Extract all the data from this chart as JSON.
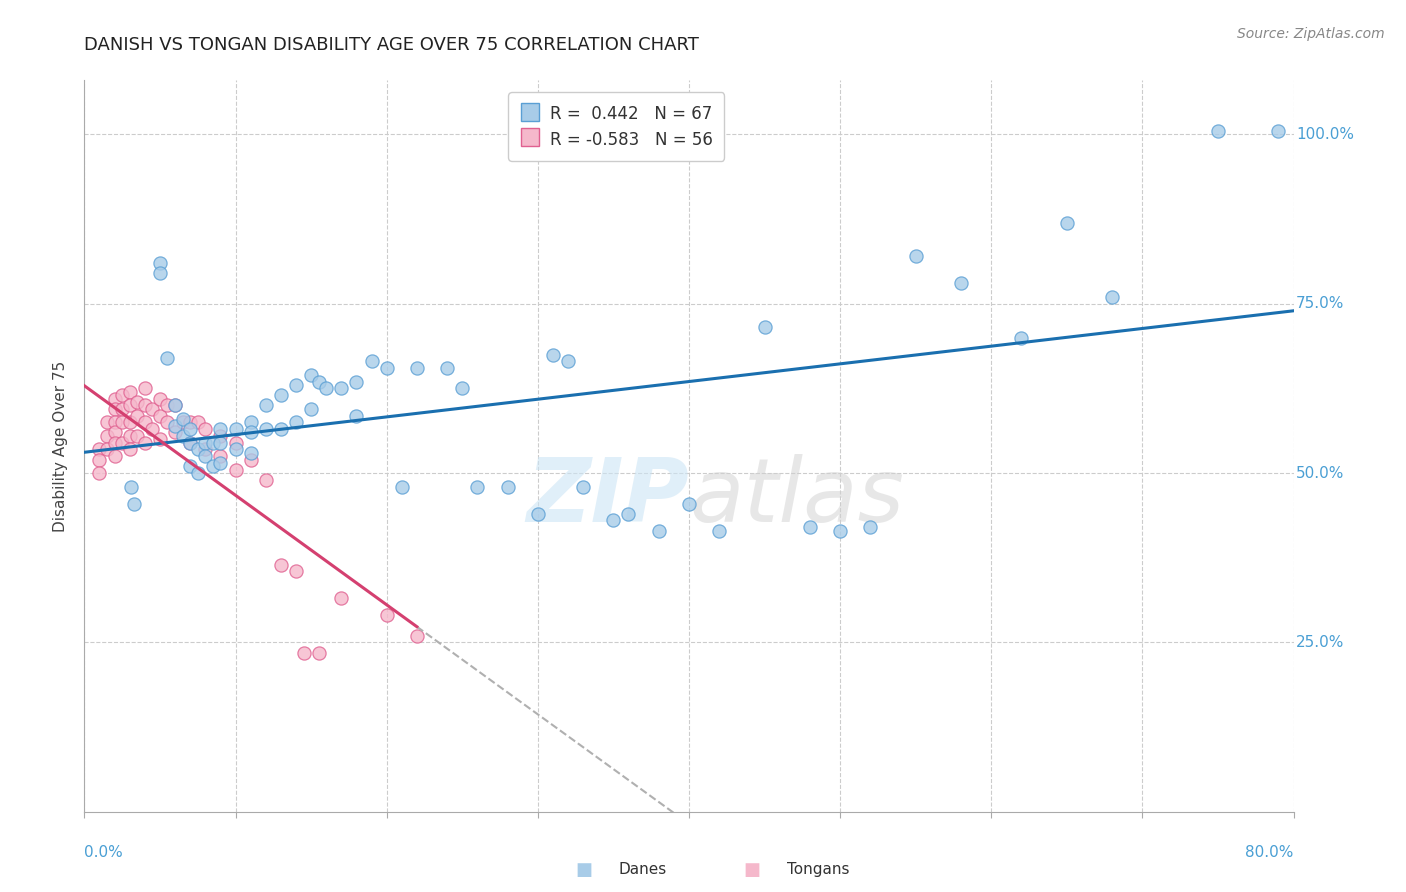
{
  "title": "DANISH VS TONGAN DISABILITY AGE OVER 75 CORRELATION CHART",
  "source": "Source: ZipAtlas.com",
  "ylabel": "Disability Age Over 75",
  "watermark": "ZIPatlas",
  "legend_danes_R": "0.442",
  "legend_danes_N": "67",
  "legend_tongans_R": "-0.583",
  "legend_tongans_N": "56",
  "danes_color": "#a8cce8",
  "danes_edge": "#5a9fd4",
  "tongans_color": "#f5b8cb",
  "tongans_edge": "#e06090",
  "regression_danes_color": "#1a6faf",
  "regression_tongans_color": "#d44070",
  "regression_dashed_color": "#b0b0b0",
  "xlim": [
    0.0,
    0.8
  ],
  "ylim": [
    0.0,
    1.08
  ],
  "title_fontsize": 13,
  "axis_label_fontsize": 11,
  "tick_fontsize": 11,
  "legend_fontsize": 12,
  "source_fontsize": 10,
  "background_color": "#ffffff",
  "grid_color": "#cccccc",
  "title_color": "#222222",
  "axis_label_color": "#444444",
  "tick_color": "#4a9fd4",
  "danes_x": [
    0.031,
    0.033,
    0.05,
    0.05,
    0.055,
    0.06,
    0.06,
    0.065,
    0.065,
    0.07,
    0.07,
    0.07,
    0.075,
    0.075,
    0.08,
    0.08,
    0.085,
    0.085,
    0.09,
    0.09,
    0.09,
    0.1,
    0.1,
    0.11,
    0.11,
    0.11,
    0.12,
    0.12,
    0.13,
    0.13,
    0.14,
    0.14,
    0.15,
    0.15,
    0.155,
    0.16,
    0.17,
    0.18,
    0.18,
    0.19,
    0.2,
    0.21,
    0.22,
    0.24,
    0.25,
    0.26,
    0.28,
    0.3,
    0.31,
    0.32,
    0.33,
    0.35,
    0.36,
    0.38,
    0.4,
    0.42,
    0.45,
    0.48,
    0.5,
    0.52,
    0.55,
    0.58,
    0.62,
    0.65,
    0.68,
    0.75,
    0.79
  ],
  "danes_y": [
    0.48,
    0.455,
    0.81,
    0.795,
    0.67,
    0.6,
    0.57,
    0.58,
    0.555,
    0.565,
    0.545,
    0.51,
    0.535,
    0.5,
    0.545,
    0.525,
    0.545,
    0.51,
    0.565,
    0.545,
    0.515,
    0.565,
    0.535,
    0.575,
    0.56,
    0.53,
    0.6,
    0.565,
    0.615,
    0.565,
    0.63,
    0.575,
    0.645,
    0.595,
    0.635,
    0.625,
    0.625,
    0.635,
    0.585,
    0.665,
    0.655,
    0.48,
    0.655,
    0.655,
    0.625,
    0.48,
    0.48,
    0.44,
    0.675,
    0.665,
    0.48,
    0.43,
    0.44,
    0.415,
    0.455,
    0.415,
    0.715,
    0.42,
    0.415,
    0.42,
    0.82,
    0.78,
    0.7,
    0.87,
    0.76,
    1.005,
    1.005
  ],
  "tongans_x": [
    0.01,
    0.01,
    0.01,
    0.015,
    0.015,
    0.015,
    0.02,
    0.02,
    0.02,
    0.02,
    0.02,
    0.02,
    0.025,
    0.025,
    0.025,
    0.025,
    0.03,
    0.03,
    0.03,
    0.03,
    0.03,
    0.035,
    0.035,
    0.035,
    0.04,
    0.04,
    0.04,
    0.04,
    0.045,
    0.045,
    0.05,
    0.05,
    0.05,
    0.055,
    0.055,
    0.06,
    0.06,
    0.065,
    0.07,
    0.07,
    0.075,
    0.08,
    0.08,
    0.09,
    0.09,
    0.1,
    0.1,
    0.11,
    0.12,
    0.13,
    0.14,
    0.145,
    0.155,
    0.17,
    0.2,
    0.22
  ],
  "tongans_y": [
    0.535,
    0.52,
    0.5,
    0.575,
    0.555,
    0.535,
    0.61,
    0.595,
    0.575,
    0.56,
    0.545,
    0.525,
    0.615,
    0.595,
    0.575,
    0.545,
    0.62,
    0.6,
    0.575,
    0.555,
    0.535,
    0.605,
    0.585,
    0.555,
    0.625,
    0.6,
    0.575,
    0.545,
    0.595,
    0.565,
    0.61,
    0.585,
    0.55,
    0.6,
    0.575,
    0.6,
    0.56,
    0.575,
    0.575,
    0.545,
    0.575,
    0.565,
    0.535,
    0.555,
    0.525,
    0.545,
    0.505,
    0.52,
    0.49,
    0.365,
    0.355,
    0.235,
    0.235,
    0.315,
    0.29,
    0.26
  ]
}
